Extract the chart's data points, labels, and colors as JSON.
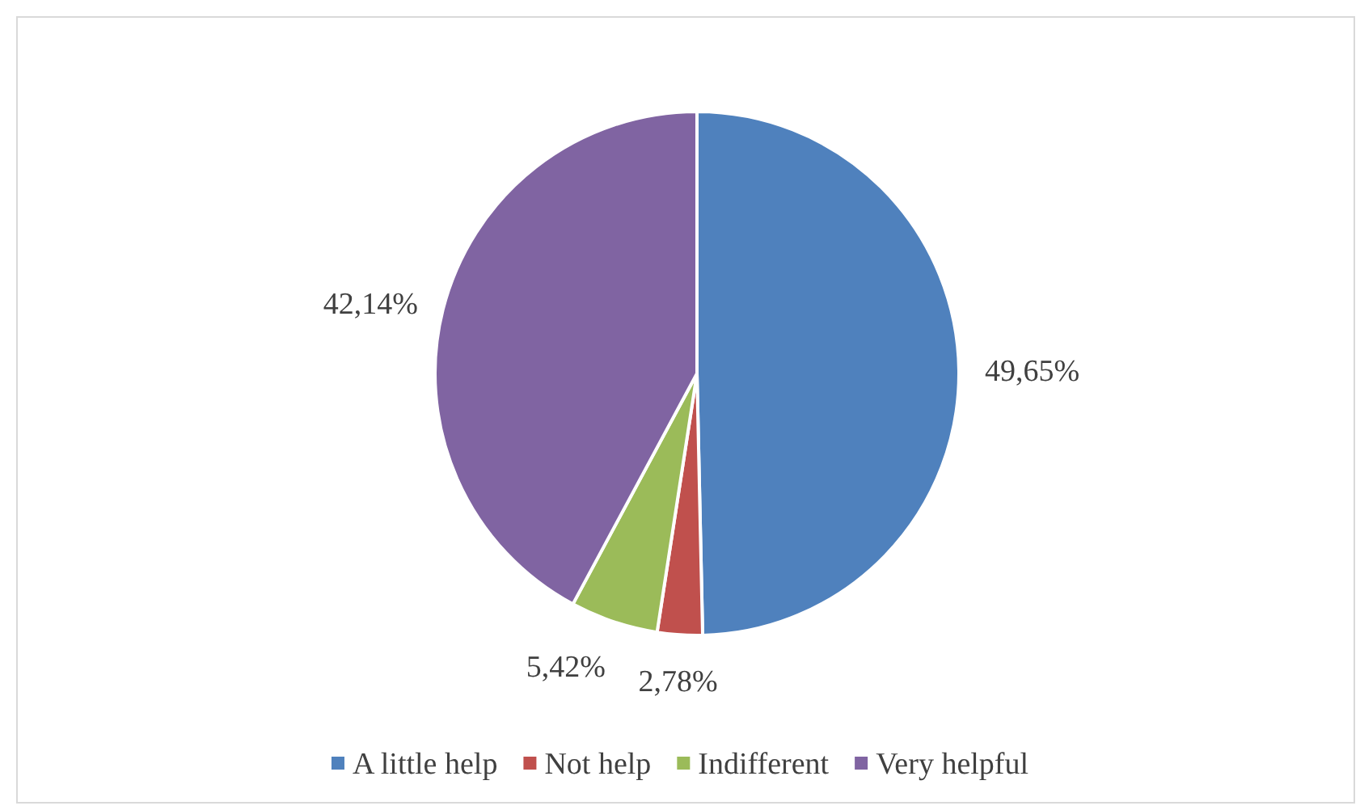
{
  "chart_data": {
    "type": "pie",
    "categories": [
      "A little help",
      "Not help",
      "Indifferent",
      "Very helpful"
    ],
    "values": [
      49.65,
      2.78,
      5.42,
      42.14
    ],
    "colors": [
      "#4f81bd",
      "#c0504d",
      "#9bbb59",
      "#8064a2"
    ],
    "value_labels": [
      "49,65%",
      "2,78%",
      "5,42%",
      "42,14%"
    ],
    "legend": "bottom"
  }
}
